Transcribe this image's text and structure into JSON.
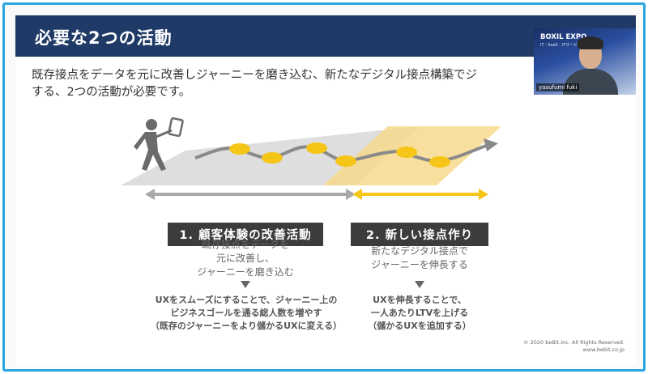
{
  "slide": {
    "title": "必要な2つの活動",
    "intro_line1": "既存接点をデータを元に改善しジャーニーを磨き込む、新たなデジタル接点構築でジ",
    "intro_line2": "する、2つの活動が必要です。"
  },
  "video": {
    "logo": "BOXIL EXPO",
    "sub": "IT · SaaS · ITサービス",
    "name": "yasufumi fuki"
  },
  "activities": [
    {
      "label": "1. 顧客体験の改善活動",
      "desc": [
        "既存接点をデータを",
        "元に改善し、",
        "ジャーニーを磨き込む"
      ],
      "result": [
        "UXをスムーズにすることで、ジャーニー上の",
        "ビジネスゴールを通る総人数を増やす",
        "（既存のジャーニーをより儲かるUXに変える）"
      ]
    },
    {
      "label": "2. 新しい接点作り",
      "desc": [
        "新たなデジタル接点で",
        "ジャーニーを伸長する"
      ],
      "result": [
        "UXを伸長することで、",
        "一人あたりLTVを上げる",
        "（儲かるUXを追加する）"
      ]
    }
  ],
  "footer": {
    "copyright": "© 2020 beBit,Inc. All Rights Reserved.",
    "url": "www.bebit.co.jp"
  },
  "colors": {
    "title_bar": "#1f3a66",
    "frame_border": "#2aa5df",
    "accent_yellow": "#f5c518",
    "gray_arrow": "#a9a9a9"
  }
}
